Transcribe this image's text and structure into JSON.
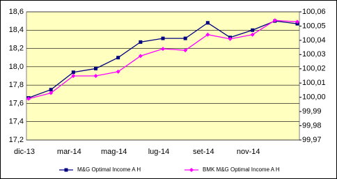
{
  "chart_data": {
    "type": "line",
    "categories": [
      "dic-13",
      null,
      "mar-14",
      null,
      "mag-14",
      null,
      "lug-14",
      null,
      "set-14",
      null,
      "nov-14",
      null,
      null
    ],
    "series": [
      {
        "name": "M&G Optimal Income A H",
        "color": "#000080",
        "marker": "square",
        "values": [
          17.66,
          17.75,
          17.94,
          17.98,
          18.1,
          18.27,
          18.31,
          18.31,
          18.48,
          18.32,
          18.4,
          18.5,
          18.47
        ]
      },
      {
        "name": "BMK M&G Optimal Income A H",
        "color": "#ff00ff",
        "marker": "diamond",
        "axis": "y2",
        "values": [
          99.999,
          100.003,
          100.015,
          100.015,
          100.018,
          100.029,
          100.034,
          100.033,
          100.044,
          100.041,
          100.044,
          100.054,
          100.053
        ]
      }
    ],
    "ylim": [
      17.2,
      18.6
    ],
    "yticks": [
      {
        "value": 17.2,
        "label": "17,2"
      },
      {
        "value": 17.4,
        "label": "17,4"
      },
      {
        "value": 17.6,
        "label": "17,6"
      },
      {
        "value": 17.8,
        "label": "17,8"
      },
      {
        "value": 18.0,
        "label": "18,0"
      },
      {
        "value": 18.2,
        "label": "18,2"
      },
      {
        "value": 18.4,
        "label": "18,4"
      },
      {
        "value": 18.6,
        "label": "18,6"
      }
    ],
    "y2lim": [
      99.97,
      100.06
    ],
    "y2ticks": [
      {
        "value": 99.97,
        "label": "99,97"
      },
      {
        "value": 99.98,
        "label": "99,98"
      },
      {
        "value": 99.99,
        "label": "99,99"
      },
      {
        "value": 100.0,
        "label": "100,00"
      },
      {
        "value": 100.01,
        "label": "100,01"
      },
      {
        "value": 100.02,
        "label": "100,02"
      },
      {
        "value": 100.03,
        "label": "100,03"
      },
      {
        "value": 100.04,
        "label": "100,04"
      },
      {
        "value": 100.05,
        "label": "100,05"
      },
      {
        "value": 100.06,
        "label": "100,06"
      }
    ],
    "grid": true,
    "legend": "bottom"
  }
}
